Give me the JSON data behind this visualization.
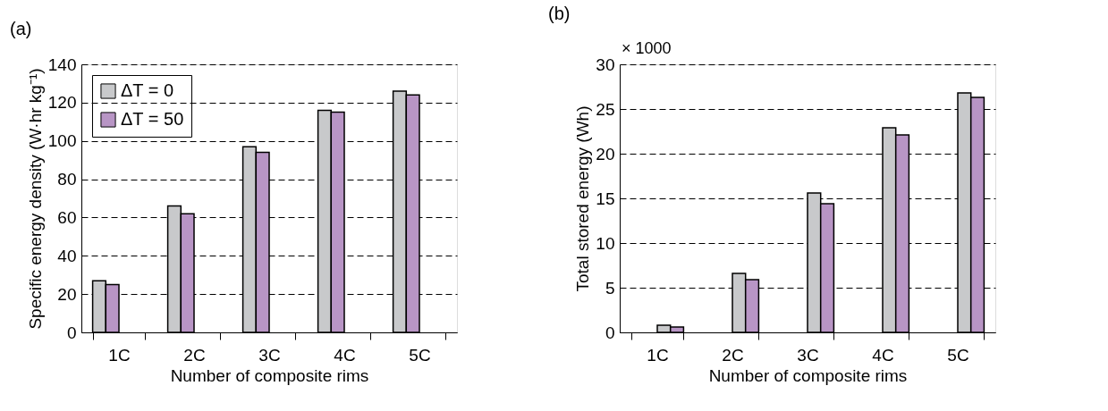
{
  "chart_data": [
    {
      "type": "bar",
      "title": "(a)",
      "xlabel": "Number of composite rims",
      "ylabel": "Specific energy density (W·hr kg⁻¹)",
      "categories": [
        "1C",
        "2C",
        "3C",
        "4C",
        "5C"
      ],
      "series": [
        {
          "name": "ΔT = 0",
          "color": "#c8c9cb",
          "values": [
            27,
            66,
            97,
            116,
            126
          ]
        },
        {
          "name": "ΔT = 50",
          "color": "#b895c5",
          "values": [
            25,
            62,
            94,
            115,
            124
          ]
        }
      ],
      "ylim": [
        0,
        140
      ],
      "yticks": [
        0,
        20,
        40,
        60,
        80,
        100,
        120,
        140
      ],
      "grid": "y",
      "legend": "top left"
    },
    {
      "type": "bar",
      "title": "(b)",
      "xlabel": "Number of composite rims",
      "ylabel": "Total stored energy (Wh)",
      "annotations": [
        "× 1000"
      ],
      "categories": [
        "1C",
        "2C",
        "3C",
        "4C",
        "5C"
      ],
      "series": [
        {
          "color": "#c8c9cb",
          "values": [
            0.8,
            6.6,
            15.6,
            22.9,
            26.8
          ]
        },
        {
          "color": "#b895c5",
          "values": [
            0.6,
            5.9,
            14.4,
            22.1,
            26.3
          ]
        }
      ],
      "ylim": [
        0,
        30
      ],
      "yticks": [
        0,
        5,
        10,
        15,
        20,
        25,
        30
      ],
      "grid": "y"
    }
  ]
}
